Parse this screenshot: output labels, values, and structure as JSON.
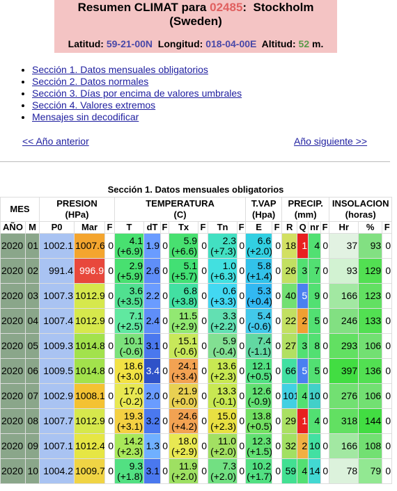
{
  "header": {
    "title": "Resumen CLIMAT para",
    "station_id": "02485",
    "separator": ":",
    "station_name": "Stockholm (Sweden)",
    "latitude_label": "Latitud:",
    "latitude": "59-21-00N",
    "longitude_label": "Longitud:",
    "longitude": "018-04-00E",
    "altitude_label": "Altitud:",
    "altitude": "52",
    "altitude_unit": "m."
  },
  "links": [
    "Sección 1. Datos mensuales obligatorios",
    "Sección 2. Datos normales",
    "Sección 3. Días por encima de valores umbrales",
    "Sección 4. Valores extremos",
    "Mensajes sin decodificar"
  ],
  "nav": {
    "previous": "<< Año anterior",
    "next": "Año siguiente >>"
  },
  "table": {
    "caption": "Sección 1. Datos mensuales obligatorios",
    "groups": [
      {
        "label": "MES"
      },
      {
        "label": "PRESION",
        "unit": "(HPa)"
      },
      {
        "label": "TEMPERATURA",
        "unit": "(C)"
      },
      {
        "label": "T.VAP",
        "unit": "(Hpa)"
      },
      {
        "label": "PRECIP.",
        "unit": "(mm)"
      },
      {
        "label": "INSOLACION",
        "unit": "(horas)"
      }
    ],
    "columns": [
      "AÑO",
      "M",
      "P0",
      "Mar",
      "F",
      "T",
      "dT",
      "F",
      "Tx",
      "F",
      "Tn",
      "F",
      "E",
      "F",
      "R",
      "Q",
      "nr",
      "F",
      "Hr",
      "%",
      "F"
    ],
    "rows": [
      [
        "2020",
        "01",
        "1002.1",
        "1007.6",
        "0",
        [
          "4.1",
          "(+6.9)"
        ],
        "1.9",
        "0",
        [
          "5.9",
          "(+6.6)"
        ],
        "0",
        [
          "2.3",
          "(+7.3)"
        ],
        "0",
        [
          "6.6",
          "(+2.0)"
        ],
        "0",
        "18",
        "1",
        "4",
        "0",
        "37",
        "93",
        "0"
      ],
      [
        "2020",
        "02",
        "991.4",
        "996.9",
        "0",
        [
          "2.9",
          "(+5.9)"
        ],
        "2.6",
        "0",
        [
          "5.1",
          "(+5.7)"
        ],
        "0",
        [
          "1.0",
          "(+6.3)"
        ],
        "0",
        [
          "5.8",
          "(+1.4)"
        ],
        "0",
        "26",
        "3",
        "7",
        "0",
        "93",
        "129",
        "0"
      ],
      [
        "2020",
        "03",
        "1007.3",
        "1012.9",
        "0",
        [
          "3.6",
          "(+3.5)"
        ],
        "2.2",
        "0",
        [
          "6.8",
          "(+3.8)"
        ],
        "0",
        [
          "0.6",
          "(+3.3)"
        ],
        "0",
        [
          "5.3",
          "(+0.4)"
        ],
        "0",
        "40",
        "5",
        "9",
        "0",
        "166",
        "123",
        "0"
      ],
      [
        "2020",
        "04",
        "1007.4",
        "1012.9",
        "0",
        [
          "7.1",
          "(+2.5)"
        ],
        "2.4",
        "0",
        [
          "11.5",
          "(+2.9)"
        ],
        "0",
        [
          "3.3",
          "(+2.2)"
        ],
        "0",
        [
          "5.4",
          "(-0.6)"
        ],
        "0",
        "22",
        "2",
        "5",
        "0",
        "246",
        "133",
        "0"
      ],
      [
        "2020",
        "05",
        "1009.3",
        "1014.8",
        "0",
        [
          "10.1",
          "(-0.6)"
        ],
        "3.1",
        "0",
        [
          "15.1",
          "(-0.6)"
        ],
        "0",
        [
          "5.9",
          "(-0.4)"
        ],
        "0",
        [
          "7.4",
          "(-1.1)"
        ],
        "0",
        "27",
        "3",
        "8",
        "0",
        "293",
        "106",
        "0"
      ],
      [
        "2020",
        "06",
        "1009.5",
        "1014.8",
        "0",
        [
          "18.6",
          "(+3.0)"
        ],
        "3.4",
        "0",
        [
          "24.1",
          "(+3.4)"
        ],
        "0",
        [
          "13.6",
          "(+2.3)"
        ],
        "0",
        [
          "12.1",
          "(+0.5)"
        ],
        "0",
        "66",
        "5",
        "5",
        "0",
        "397",
        "136",
        "0"
      ],
      [
        "2020",
        "07",
        "1002.9",
        "1008.1",
        "0",
        [
          "17.0",
          "(-0.2)"
        ],
        "2.0",
        "0",
        [
          "21.9",
          "(+0.0)"
        ],
        "0",
        [
          "13.3",
          "(-0.1)"
        ],
        "0",
        [
          "12.6",
          "(-0.9)"
        ],
        "0",
        "101",
        "4",
        "10",
        "0",
        "276",
        "106",
        "0"
      ],
      [
        "2020",
        "08",
        "1007.7",
        "1012.9",
        "0",
        [
          "19.3",
          "(+3.1)"
        ],
        "3.2",
        "0",
        [
          "24.6",
          "(+4.2)"
        ],
        "0",
        [
          "15.0",
          "(+2.3)"
        ],
        "0",
        [
          "13.8",
          "(+0.5)"
        ],
        "0",
        "29",
        "1",
        "4",
        "0",
        "318",
        "144",
        "0"
      ],
      [
        "2020",
        "09",
        "1007.1",
        "1012.4",
        "0",
        [
          "14.2",
          "(+2.3)"
        ],
        "1.3",
        "0",
        [
          "18.0",
          "(+2.9)"
        ],
        "0",
        [
          "11.0",
          "(+2.0)"
        ],
        "0",
        [
          "12.3",
          "(+1.5)"
        ],
        "0",
        "32",
        "2",
        "10",
        "0",
        "166",
        "108",
        "0"
      ],
      [
        "2020",
        "10",
        "1004.2",
        "1009.7",
        "0",
        [
          "9.3",
          "(+1.8)"
        ],
        "3.1",
        "0",
        [
          "11.9",
          "(+2.0)"
        ],
        "0",
        [
          "7.3",
          "(+2.0)"
        ],
        "0",
        [
          "10.2",
          "(+1.7)"
        ],
        "0",
        "59",
        "4",
        "14",
        "0",
        "78",
        "79",
        "0"
      ]
    ]
  }
}
